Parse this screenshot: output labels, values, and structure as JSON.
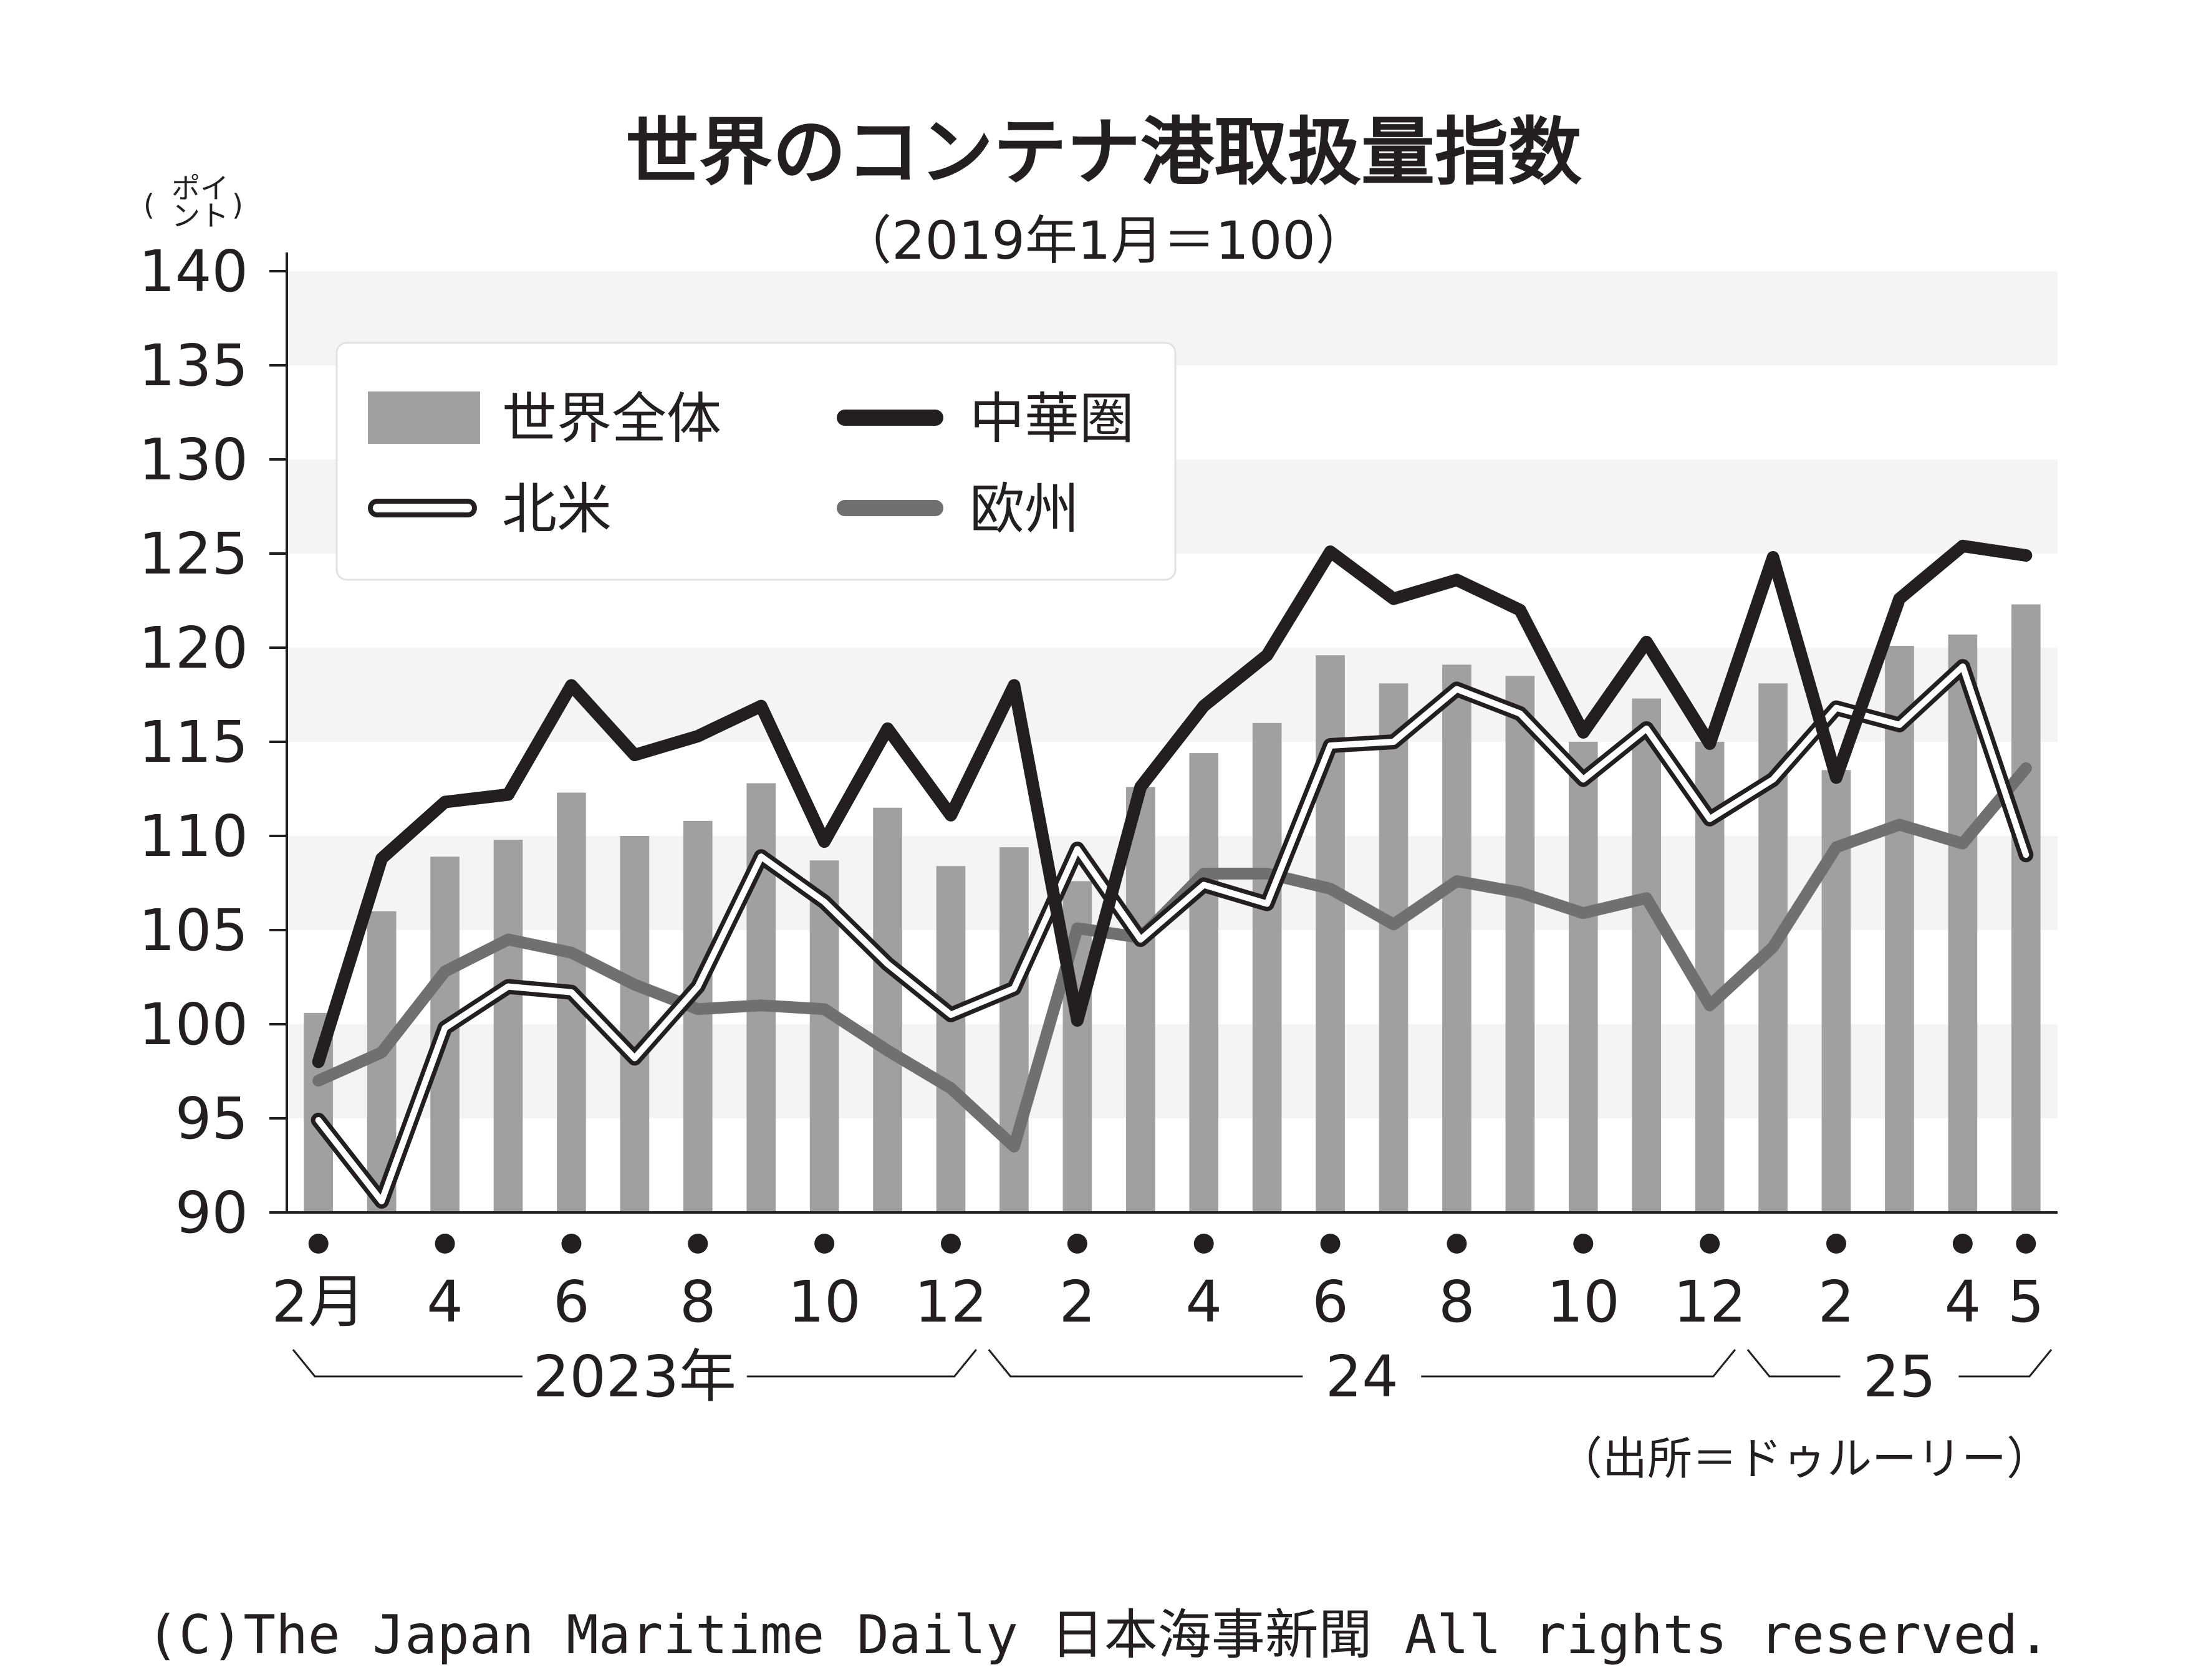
{
  "chart_data": {
    "type": "bar+line",
    "title": "世界のコンテナ港取扱量指数",
    "subtitle": "（2019年1月＝100）",
    "unit_label": "（ポイント）",
    "ylim": [
      90,
      140
    ],
    "yticks": [
      "90",
      "95",
      "100",
      "105",
      "110",
      "115",
      "120",
      "125",
      "130",
      "135",
      "140"
    ],
    "x_tick_labels": [
      {
        "index": 0,
        "label": "2月"
      },
      {
        "index": 2,
        "label": "4"
      },
      {
        "index": 4,
        "label": "6"
      },
      {
        "index": 6,
        "label": "8"
      },
      {
        "index": 8,
        "label": "10"
      },
      {
        "index": 10,
        "label": "12"
      },
      {
        "index": 12,
        "label": "2"
      },
      {
        "index": 14,
        "label": "4"
      },
      {
        "index": 16,
        "label": "6"
      },
      {
        "index": 18,
        "label": "8"
      },
      {
        "index": 20,
        "label": "10"
      },
      {
        "index": 22,
        "label": "12"
      },
      {
        "index": 24,
        "label": "2"
      },
      {
        "index": 26,
        "label": "4"
      },
      {
        "index": 27,
        "label": "5"
      }
    ],
    "year_groups": [
      {
        "label": "2023年",
        "start": 0,
        "end": 10
      },
      {
        "label": "24",
        "start": 11,
        "end": 22
      },
      {
        "label": "25",
        "start": 23,
        "end": 27
      }
    ],
    "categories": [
      "2023-02",
      "2023-03",
      "2023-04",
      "2023-05",
      "2023-06",
      "2023-07",
      "2023-08",
      "2023-09",
      "2023-10",
      "2023-11",
      "2023-12",
      "2024-01",
      "2024-02",
      "2024-03",
      "2024-04",
      "2024-05",
      "2024-06",
      "2024-07",
      "2024-08",
      "2024-09",
      "2024-10",
      "2024-11",
      "2024-12",
      "2025-01",
      "2025-02",
      "2025-03",
      "2025-04",
      "2025-05"
    ],
    "series": [
      {
        "name": "世界全体",
        "kind": "bar",
        "color": "#a0a0a0",
        "values": [
          100.6,
          106.0,
          108.9,
          109.8,
          112.3,
          110.0,
          110.8,
          112.8,
          108.7,
          111.5,
          108.4,
          109.4,
          107.6,
          112.6,
          114.4,
          116.0,
          119.6,
          118.1,
          119.1,
          118.5,
          115.0,
          117.3,
          115.0,
          118.1,
          113.5,
          120.1,
          120.7,
          122.3
        ]
      },
      {
        "name": "中華圏",
        "kind": "line",
        "color": "#231f20",
        "values": [
          98.0,
          108.8,
          111.8,
          112.2,
          118.0,
          114.3,
          115.3,
          116.9,
          109.7,
          115.7,
          111.1,
          118.0,
          100.2,
          112.6,
          116.9,
          119.6,
          125.1,
          122.6,
          123.6,
          122.0,
          115.5,
          120.3,
          114.9,
          124.8,
          113.1,
          122.6,
          125.4,
          124.9
        ]
      },
      {
        "name": "北米",
        "kind": "line",
        "color": "#ffffff",
        "values": [
          94.9,
          90.6,
          99.8,
          102.0,
          101.7,
          98.2,
          102.0,
          108.9,
          106.5,
          103.2,
          100.5,
          101.9,
          109.3,
          104.5,
          107.4,
          106.4,
          114.8,
          115.0,
          117.8,
          116.5,
          113.0,
          115.7,
          110.9,
          113.0,
          116.8,
          115.9,
          119.0,
          109.0
        ]
      },
      {
        "name": "欧州",
        "kind": "line",
        "color": "#707070",
        "values": [
          97.0,
          98.5,
          102.8,
          104.5,
          103.8,
          102.1,
          100.8,
          101.0,
          100.8,
          98.6,
          96.6,
          93.5,
          105.1,
          104.6,
          108.0,
          108.0,
          107.2,
          105.3,
          107.6,
          107.0,
          105.9,
          106.7,
          101.0,
          104.1,
          109.4,
          110.6,
          109.6,
          113.6
        ]
      }
    ],
    "legend": {
      "placement": "top-left"
    },
    "grid": "alternating horizontal bands",
    "source": "（出所＝ドゥルーリー）"
  },
  "copyright": "(C)The Japan Maritime Daily 日本海事新聞 All rights reserved."
}
